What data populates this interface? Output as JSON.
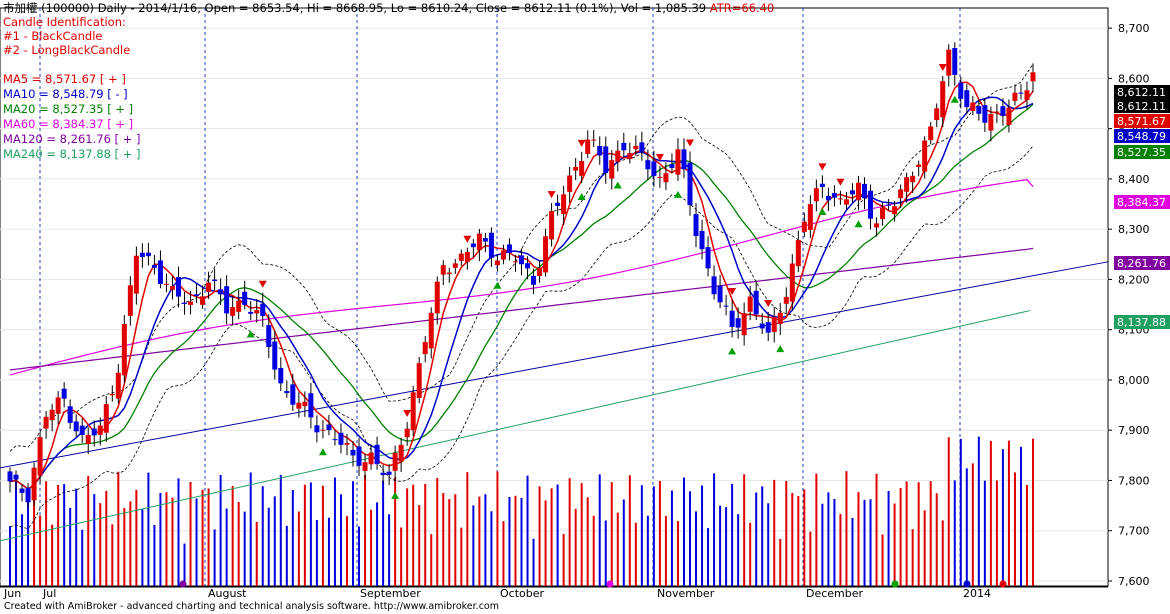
{
  "header": {
    "symbol": "市加權 (100000)",
    "quote": "Daily - 2014/1/16, Open = 8653.54, Hi = 8668.95, Lo = 8610.24, Close = 8612.11 (0.1%), Vol = 1,085.39",
    "atr": "ATR=66.40",
    "candle_title": "Candle Identification:",
    "candle_1": "#1 - BlackCandle",
    "candle_2": "#2 - LongBlackCandle"
  },
  "ma_legend": [
    {
      "text": "MA5 = 8,571.67 [ + ]",
      "color": "#e00000"
    },
    {
      "text": "MA10 = 8,548.79 [ - ]",
      "color": "#0000c8"
    },
    {
      "text": "MA20 = 8,527.35 [ + ]",
      "color": "#008000"
    },
    {
      "text": "MA60 = 8,384.37 [ + ]",
      "color": "#e000e0"
    },
    {
      "text": "MA120 = 8,261.76 [ + ]",
      "color": "#8000a0"
    },
    {
      "text": "MA240 = 8,137.88 [ + ]",
      "color": "#20a060"
    }
  ],
  "credit": "Created with AmiBroker - advanced charting and technical analysis software. http://www.amibroker.com",
  "chart_data": {
    "type": "candlestick",
    "ylim": [
      7590,
      8740
    ],
    "y_ticks": [
      "8,700",
      "8,600",
      "8,500",
      "8,400",
      "8,300",
      "8,200",
      "8,100",
      "8,000",
      "7,900",
      "7,800",
      "7,700",
      "7,600"
    ],
    "x_labels": [
      "Jun",
      "Jul",
      "August",
      "September",
      "October",
      "November",
      "December",
      "2014"
    ],
    "value_labels": [
      {
        "text": "8,612.11",
        "bg": "#000000",
        "fg": "#ffffff"
      },
      {
        "text": "8,612.11",
        "bg": "#000000",
        "fg": "#ffffff"
      },
      {
        "text": "8,571.67",
        "bg": "#e00000",
        "fg": "#ffffff"
      },
      {
        "text": "8,548.79",
        "bg": "#0000c8",
        "fg": "#ffffff"
      },
      {
        "text": "8,527.35",
        "bg": "#008000",
        "fg": "#ffffff"
      },
      {
        "text": "8,384.37",
        "bg": "#e000e0",
        "fg": "#ffffff"
      },
      {
        "text": "8,261.76",
        "bg": "#8000a0",
        "fg": "#ffffff"
      },
      {
        "text": "8,137.88",
        "bg": "#20a060",
        "fg": "#ffffff"
      }
    ],
    "close_anchors": [
      [
        0,
        7790
      ],
      [
        3,
        7775
      ],
      [
        6,
        7930
      ],
      [
        9,
        7960
      ],
      [
        12,
        7880
      ],
      [
        15,
        7900
      ],
      [
        18,
        8030
      ],
      [
        21,
        8250
      ],
      [
        24,
        8230
      ],
      [
        27,
        8170
      ],
      [
        30,
        8150
      ],
      [
        33,
        8200
      ],
      [
        36,
        8140
      ],
      [
        39,
        8160
      ],
      [
        42,
        8110
      ],
      [
        45,
        7990
      ],
      [
        48,
        7950
      ],
      [
        51,
        7910
      ],
      [
        54,
        7890
      ],
      [
        57,
        7840
      ],
      [
        60,
        7850
      ],
      [
        63,
        7800
      ],
      [
        66,
        7920
      ],
      [
        69,
        8080
      ],
      [
        72,
        8230
      ],
      [
        75,
        8240
      ],
      [
        78,
        8280
      ],
      [
        81,
        8250
      ],
      [
        84,
        8240
      ],
      [
        87,
        8200
      ],
      [
        90,
        8320
      ],
      [
        93,
        8400
      ],
      [
        96,
        8480
      ],
      [
        99,
        8420
      ],
      [
        102,
        8470
      ],
      [
        105,
        8440
      ],
      [
        108,
        8400
      ],
      [
        111,
        8450
      ],
      [
        114,
        8300
      ],
      [
        117,
        8180
      ],
      [
        120,
        8100
      ],
      [
        123,
        8160
      ],
      [
        126,
        8080
      ],
      [
        129,
        8180
      ],
      [
        132,
        8320
      ],
      [
        135,
        8390
      ],
      [
        138,
        8350
      ],
      [
        141,
        8380
      ],
      [
        144,
        8320
      ],
      [
        147,
        8350
      ],
      [
        150,
        8420
      ],
      [
        153,
        8490
      ],
      [
        156,
        8650
      ],
      [
        159,
        8540
      ],
      [
        162,
        8520
      ],
      [
        165,
        8540
      ],
      [
        168,
        8560
      ],
      [
        170,
        8612
      ]
    ],
    "ma5_last": 8571.67,
    "ma10_last": 8548.79,
    "ma20_last": 8527.35,
    "ma60_last": 8384.37,
    "ma120_last": 8261.76,
    "ma240_last": 8137.88
  }
}
